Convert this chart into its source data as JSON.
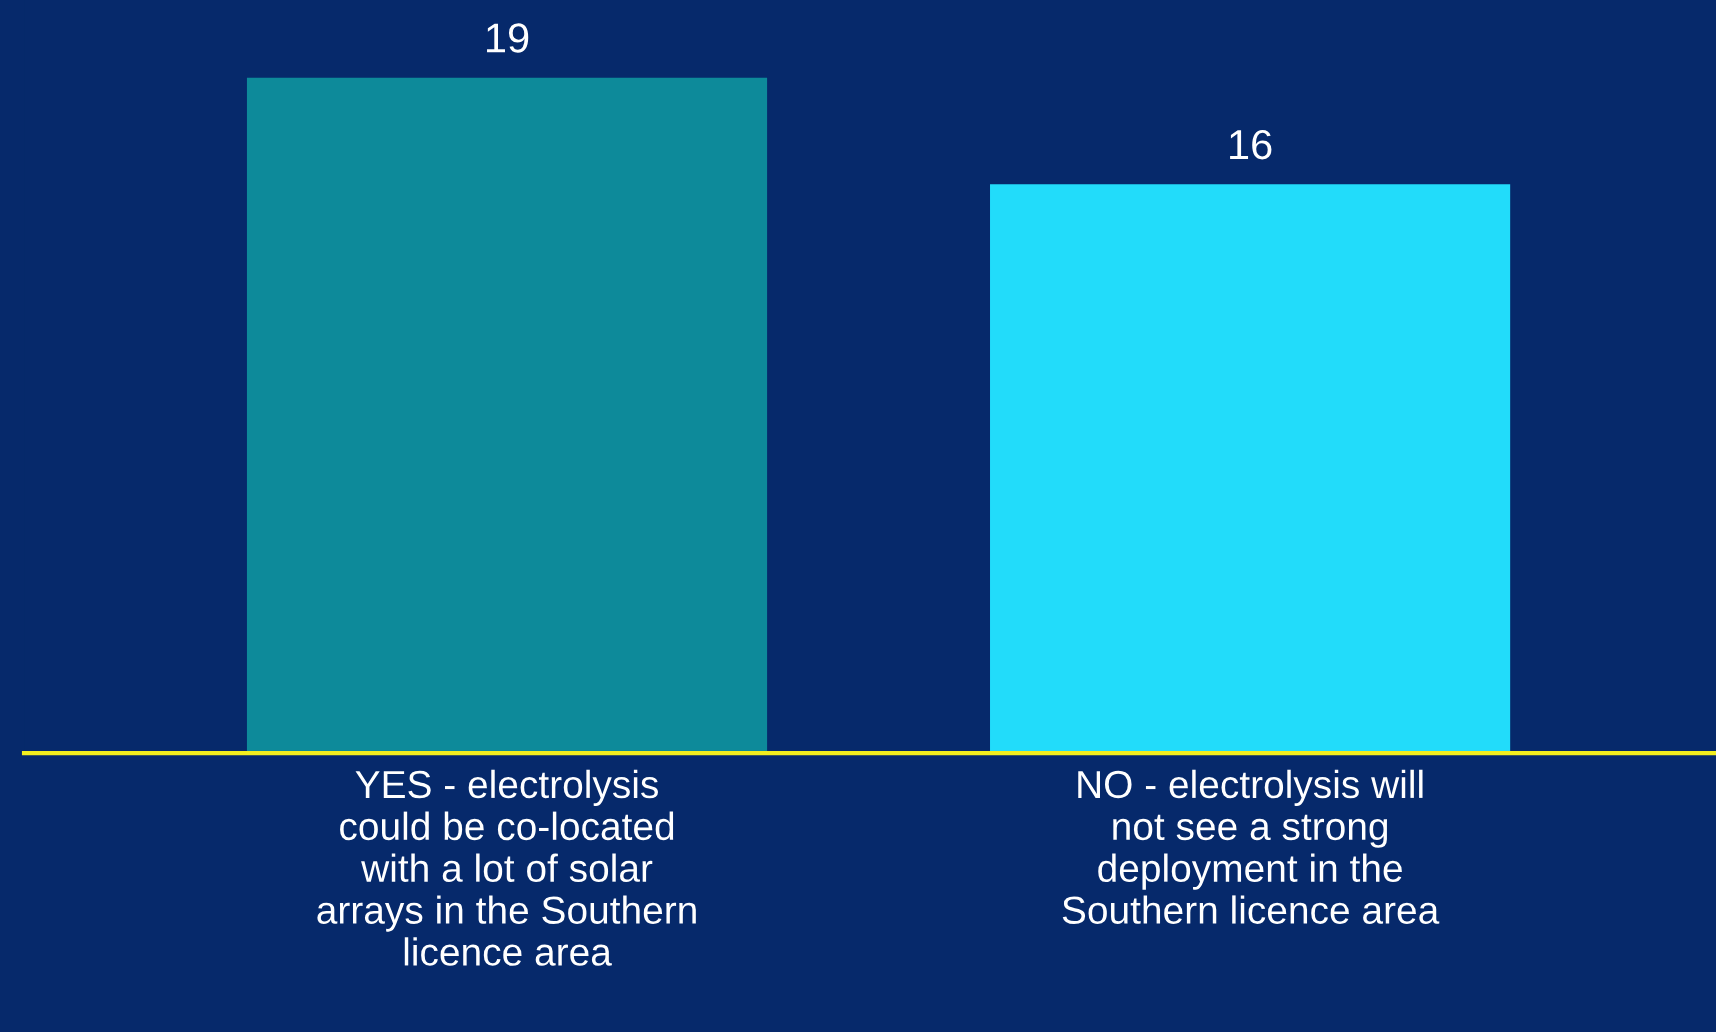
{
  "chart_data": {
    "type": "bar",
    "categories": [
      "YES - electrolysis\ncould be co-located\nwith a lot of solar\narrays in the Southern\nlicence area",
      "NO - electrolysis will\nnot see a strong\ndeployment in the\nSouthern licence area"
    ],
    "values": [
      19,
      16
    ],
    "colors": [
      "#0d8a9a",
      "#22dcfa"
    ],
    "data_labels": true,
    "grid": false,
    "legend": false
  }
}
